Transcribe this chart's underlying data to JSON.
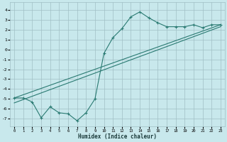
{
  "xlabel": "Humidex (Indice chaleur)",
  "bg_color": "#c8e8ec",
  "grid_color": "#a0bfc5",
  "line_color": "#2a7a72",
  "xlim": [
    -0.5,
    23.5
  ],
  "ylim": [
    -7.8,
    4.8
  ],
  "yticks": [
    4,
    3,
    2,
    1,
    0,
    -1,
    -2,
    -3,
    -4,
    -5,
    -6,
    -7
  ],
  "xticks": [
    0,
    1,
    2,
    3,
    4,
    5,
    6,
    7,
    8,
    9,
    10,
    11,
    12,
    13,
    14,
    15,
    16,
    17,
    18,
    19,
    20,
    21,
    22,
    23
  ],
  "curve1_x": [
    0,
    1,
    2,
    3,
    4,
    5,
    6,
    7,
    8,
    9,
    10,
    11,
    12,
    13,
    14,
    15,
    16,
    17,
    18,
    19,
    20,
    21,
    22,
    23
  ],
  "curve1_y": [
    -4.9,
    -4.9,
    -5.3,
    -6.9,
    -5.8,
    -6.4,
    -6.5,
    -7.2,
    -6.4,
    -5.0,
    -0.4,
    1.2,
    2.1,
    3.3,
    3.8,
    3.2,
    2.7,
    2.3,
    2.3,
    2.3,
    2.5,
    2.2,
    2.5,
    2.5
  ],
  "diag1_x0": 0,
  "diag1_y0": -4.9,
  "diag1_x1": 23,
  "diag1_y1": 2.5,
  "diag2_x0": 0,
  "diag2_y0": -5.4,
  "diag2_x1": 23,
  "diag2_y1": 2.3
}
